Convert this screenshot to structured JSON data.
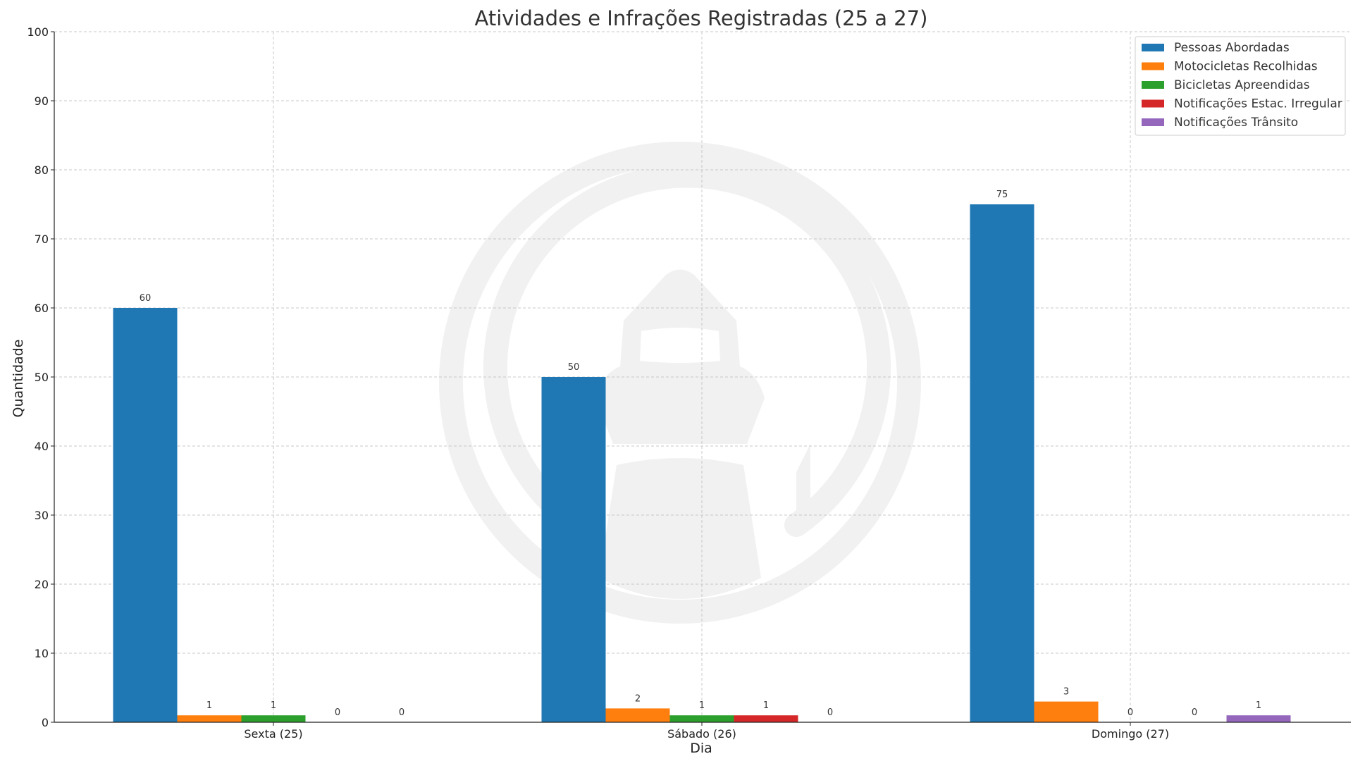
{
  "chart_data": {
    "type": "bar",
    "title": "Atividades e Infrações Registradas (25 a 27)",
    "xlabel": "Dia",
    "ylabel": "Quantidade",
    "ylim": [
      0,
      100
    ],
    "yticks": [
      0,
      10,
      20,
      30,
      40,
      50,
      60,
      70,
      80,
      90,
      100
    ],
    "grid": true,
    "legend_position": "top-right",
    "categories": [
      "Sexta (25)",
      "Sábado (26)",
      "Domingo (27)"
    ],
    "series": [
      {
        "name": "Pessoas Abordadas",
        "color": "#1f77b4",
        "values": [
          60,
          50,
          75
        ]
      },
      {
        "name": "Motocicletas Recolhidas",
        "color": "#ff7f0e",
        "values": [
          1,
          2,
          3
        ]
      },
      {
        "name": "Bicicletas Apreendidas",
        "color": "#2ca02c",
        "values": [
          1,
          1,
          0
        ]
      },
      {
        "name": "Notificações Estac. Irregular",
        "color": "#d62728",
        "values": [
          0,
          1,
          0
        ]
      },
      {
        "name": "Notificações Trânsito",
        "color": "#9467bd",
        "values": [
          0,
          0,
          1
        ]
      }
    ]
  }
}
